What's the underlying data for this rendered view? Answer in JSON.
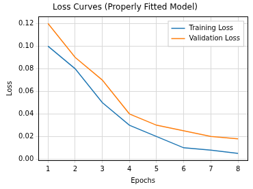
{
  "chart_data": {
    "type": "line",
    "title": "Loss Curves (Properly Fitted Model)",
    "x_label": "Epochs",
    "y_label": "Loss",
    "x": [
      1,
      2,
      3,
      4,
      5,
      6,
      7,
      8
    ],
    "series": [
      {
        "name": "Training Loss",
        "color": "#1f77b4",
        "values": [
          0.1,
          0.08,
          0.05,
          0.03,
          0.02,
          0.01,
          0.008,
          0.005
        ]
      },
      {
        "name": "Validation Loss",
        "color": "#ff7f0e",
        "values": [
          0.12,
          0.09,
          0.07,
          0.04,
          0.03,
          0.025,
          0.02,
          0.018
        ]
      }
    ],
    "xlim": [
      0.65,
      8.35
    ],
    "xticks": [
      1,
      2,
      3,
      4,
      5,
      6,
      7,
      8
    ],
    "ylim": [
      -0.001,
      0.126
    ],
    "yticks": [
      {
        "value": 0,
        "label": "0.00"
      },
      {
        "value": 0.02,
        "label": "0.02"
      },
      {
        "value": 0.04,
        "label": "0.04"
      },
      {
        "value": 0.06,
        "label": "0.06"
      },
      {
        "value": 0.08,
        "label": "0.08"
      },
      {
        "value": 0.1,
        "label": "0.10"
      },
      {
        "value": 0.12,
        "label": "0.12"
      }
    ],
    "grid": true,
    "legend": "upper right"
  }
}
